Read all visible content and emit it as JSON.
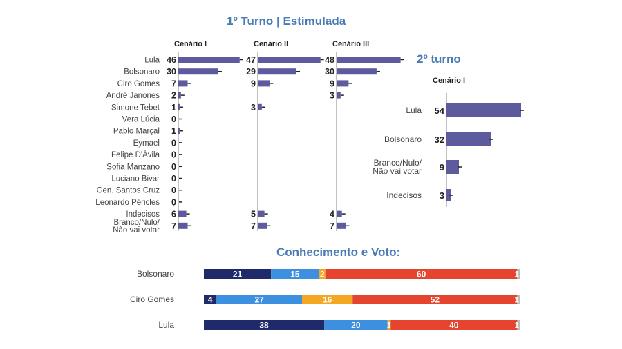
{
  "headings": {
    "first_round": "1º Turno | Estimulada",
    "second_round": "2º turno",
    "knowledge": "Conhecimento e Voto:"
  },
  "colors": {
    "bar": "#5e5a9e",
    "axis": "#999999",
    "kv_dark_blue": "#1f2a6b",
    "kv_light_blue": "#3d8fe0",
    "kv_yellow": "#f5a623",
    "kv_red": "#e5452e",
    "kv_gray": "#bbbbbb"
  },
  "chart_data": [
    {
      "type": "bar",
      "orientation": "horizontal",
      "title": "1º Turno | Estimulada",
      "categories": [
        "Lula",
        "Bolsonaro",
        "Ciro Gomes",
        "André Janones",
        "Simone Tebet",
        "Vera Lúcia",
        "Pablo Marçal",
        "Eymael",
        "Felipe D'Ávila",
        "Sofia Manzano",
        "Luciano Bivar",
        "Gen. Santos Cruz",
        "Leonardo Péricles",
        "Indecisos",
        "Branco/Nulo/\nNão vai votar"
      ],
      "series": [
        {
          "name": "Cenário I",
          "values": [
            46,
            30,
            7,
            2,
            1,
            0,
            1,
            0,
            0,
            0,
            0,
            0,
            0,
            6,
            7
          ]
        },
        {
          "name": "Cenário II",
          "values": [
            47,
            29,
            9,
            null,
            3,
            null,
            null,
            null,
            null,
            null,
            null,
            null,
            null,
            5,
            7
          ]
        },
        {
          "name": "Cenário III",
          "values": [
            48,
            30,
            9,
            3,
            null,
            null,
            null,
            null,
            null,
            null,
            null,
            null,
            null,
            4,
            7
          ]
        }
      ],
      "xlim": [
        0,
        55
      ]
    },
    {
      "type": "bar",
      "orientation": "horizontal",
      "title": "2º turno",
      "series": [
        {
          "name": "Cenário I",
          "values": [
            54,
            32,
            9,
            3
          ]
        }
      ],
      "categories": [
        "Lula",
        "Bolsonaro",
        "Branco/Nulo/\nNão vai votar",
        "Indecisos"
      ],
      "xlim": [
        0,
        55
      ]
    },
    {
      "type": "bar",
      "orientation": "horizontal",
      "stacked": true,
      "title": "Conhecimento e Voto:",
      "categories": [
        "Bolsonaro",
        "Ciro Gomes",
        "Lula"
      ],
      "segments": [
        [
          21,
          15,
          2,
          60,
          1
        ],
        [
          4,
          27,
          16,
          52,
          1
        ],
        [
          38,
          20,
          1,
          40,
          1
        ]
      ],
      "segment_colors": [
        "#1f2a6b",
        "#3d8fe0",
        "#f5a623",
        "#e5452e",
        "#bbbbbb"
      ]
    }
  ]
}
